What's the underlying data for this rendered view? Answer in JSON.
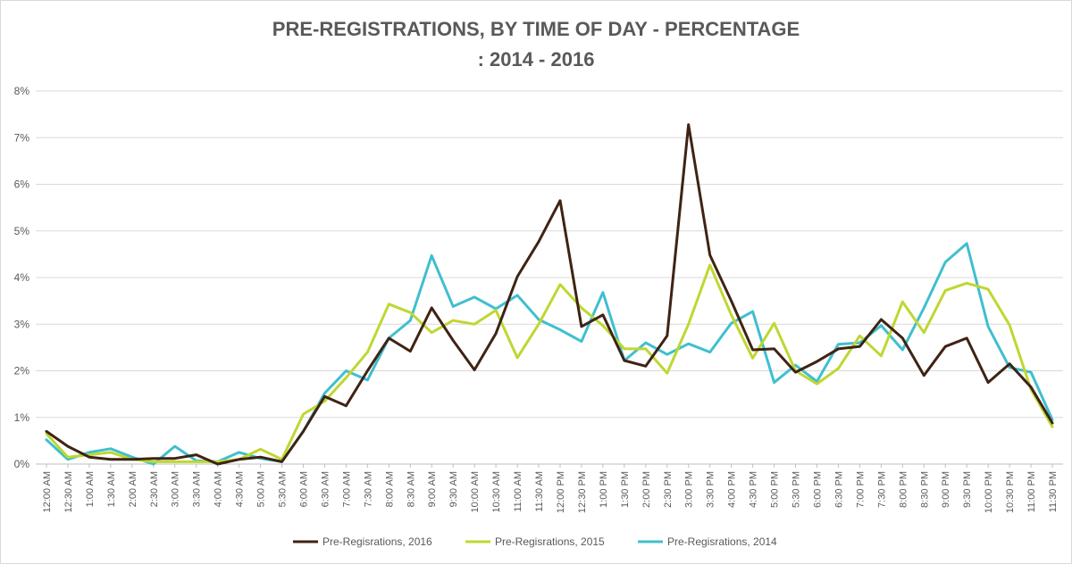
{
  "chart_data": {
    "type": "line",
    "title_line1": "PRE-REGISTRATIONS, BY TIME OF DAY - PERCENTAGE",
    "title_line2": ": 2014 - 2016",
    "ylim": [
      0,
      8
    ],
    "y_ticks": [
      "0%",
      "1%",
      "2%",
      "3%",
      "4%",
      "5%",
      "6%",
      "7%",
      "8%"
    ],
    "grid": true,
    "legend_position": "bottom",
    "categories": [
      "12:00 AM",
      "12:30 AM",
      "1:00 AM",
      "1:30 AM",
      "2:00 AM",
      "2:30 AM",
      "3:00 AM",
      "3:30 AM",
      "4:00 AM",
      "4:30 AM",
      "5:00 AM",
      "5:30 AM",
      "6:00 AM",
      "6:30 AM",
      "7:00 AM",
      "7:30 AM",
      "8:00 AM",
      "8:30 AM",
      "9:00 AM",
      "9:30 AM",
      "10:00 AM",
      "10:30 AM",
      "11:00 AM",
      "11:30 AM",
      "12:00 PM",
      "12:30 PM",
      "1:00 PM",
      "1:30 PM",
      "2:00 PM",
      "2:30 PM",
      "3:00 PM",
      "3:30 PM",
      "4:00 PM",
      "4:30 PM",
      "5:00 PM",
      "5:30 PM",
      "6:00 PM",
      "6:30 PM",
      "7:00 PM",
      "7:30 PM",
      "8:00 PM",
      "8:30 PM",
      "9:00 PM",
      "9:30 PM",
      "10:00 PM",
      "10:30 PM",
      "11:00 PM",
      "11:30 PM"
    ],
    "series": [
      {
        "name": "Pre-Regisrations, 2016",
        "color": "#3f2314",
        "values": [
          0.7,
          0.38,
          0.15,
          0.1,
          0.1,
          0.12,
          0.12,
          0.2,
          0.0,
          0.1,
          0.15,
          0.05,
          0.7,
          1.45,
          1.25,
          2.0,
          2.7,
          2.42,
          3.35,
          2.65,
          2.02,
          2.8,
          4.02,
          4.77,
          5.65,
          2.95,
          3.2,
          2.22,
          2.1,
          2.75,
          7.28,
          4.48,
          3.5,
          2.45,
          2.47,
          1.97,
          2.2,
          2.47,
          2.52,
          3.1,
          2.7,
          1.9,
          2.52,
          2.7,
          1.75,
          2.15,
          1.65,
          0.88
        ]
      },
      {
        "name": "Pre-Regisrations, 2015",
        "color": "#bfd730",
        "values": [
          0.65,
          0.15,
          0.2,
          0.25,
          0.1,
          0.05,
          0.05,
          0.05,
          0.05,
          0.1,
          0.32,
          0.1,
          1.07,
          1.35,
          1.85,
          2.4,
          3.43,
          3.25,
          2.82,
          3.08,
          3.0,
          3.3,
          2.28,
          3.0,
          3.85,
          3.35,
          2.97,
          2.47,
          2.47,
          1.95,
          3.0,
          4.27,
          3.2,
          2.27,
          3.02,
          2.0,
          1.72,
          2.05,
          2.75,
          2.32,
          3.48,
          2.82,
          3.72,
          3.88,
          3.75,
          2.98,
          1.6,
          0.8
        ]
      },
      {
        "name": "Pre-Regisrations, 2014",
        "color": "#3fbfcf",
        "values": [
          0.52,
          0.1,
          0.25,
          0.33,
          0.15,
          0.0,
          0.38,
          0.07,
          0.05,
          0.25,
          0.12,
          0.05,
          0.7,
          1.52,
          2.0,
          1.8,
          2.7,
          3.08,
          4.47,
          3.38,
          3.58,
          3.33,
          3.62,
          3.1,
          2.88,
          2.63,
          3.68,
          2.22,
          2.6,
          2.35,
          2.58,
          2.4,
          3.02,
          3.27,
          1.75,
          2.12,
          1.77,
          2.57,
          2.6,
          2.97,
          2.45,
          3.35,
          4.33,
          4.73,
          2.95,
          2.07,
          1.97,
          0.95
        ]
      }
    ]
  }
}
